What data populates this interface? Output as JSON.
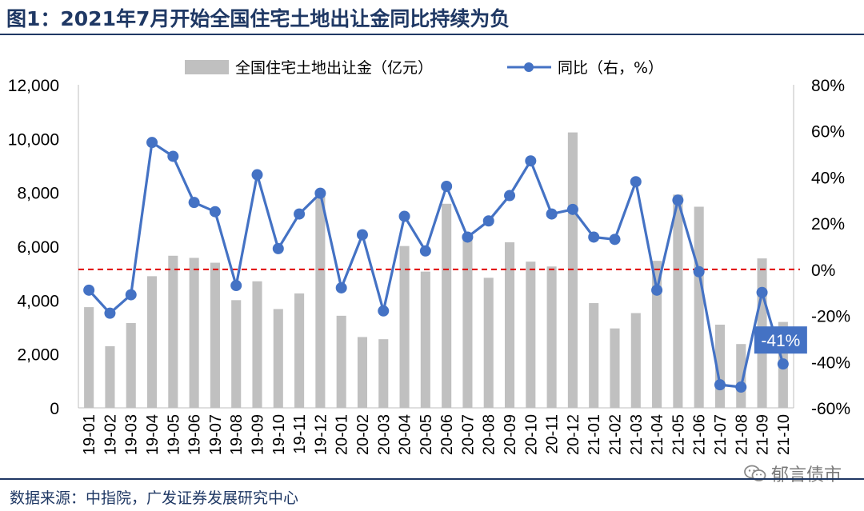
{
  "title": "图1：2021年7月开始全国住宅土地出让金同比持续为负",
  "source": "数据来源：中指院，广发证券发展研究中心",
  "watermark": "郁言债市",
  "colors": {
    "bar": "#c0c0c0",
    "line": "#4472c4",
    "zero_line": "#e00000",
    "title": "#1f3864"
  },
  "chart_data": {
    "type": "bar",
    "categories": [
      "19-01",
      "19-02",
      "19-03",
      "19-04",
      "19-05",
      "19-06",
      "19-07",
      "19-08",
      "19-09",
      "19-10",
      "19-11",
      "19-12",
      "20-01",
      "20-02",
      "20-03",
      "20-04",
      "20-05",
      "20-06",
      "20-07",
      "20-08",
      "20-09",
      "20-10",
      "20-11",
      "20-12",
      "21-01",
      "21-02",
      "21-03",
      "21-04",
      "21-05",
      "21-06",
      "21-07",
      "21-08",
      "21-09",
      "21-10"
    ],
    "series": [
      {
        "name": "全国住宅土地出让金（亿元）",
        "type": "bar",
        "axis": "left",
        "values": [
          3740,
          2290,
          3150,
          4890,
          5650,
          5570,
          5390,
          4000,
          4700,
          3670,
          4250,
          7950,
          3420,
          2630,
          2550,
          6010,
          5060,
          7580,
          6400,
          4830,
          6150,
          5430,
          5250,
          10230,
          3890,
          2950,
          3520,
          5460,
          7920,
          7470,
          3090,
          2370,
          5550,
          3190
        ]
      },
      {
        "name": "同比（右，%）",
        "type": "line",
        "axis": "right",
        "values": [
          -9,
          -19,
          -11,
          55,
          49,
          29,
          25,
          -7,
          41,
          9,
          24,
          33,
          -8,
          15,
          -18,
          23,
          8,
          36,
          14,
          21,
          32,
          47,
          24,
          26,
          14,
          13,
          38,
          -9,
          30,
          -1,
          -50,
          -51,
          -10,
          -41
        ]
      }
    ],
    "ylim_left": [
      0,
      12000
    ],
    "ylim_right": [
      -60,
      80
    ],
    "left_ticks": [
      "0",
      "2,000",
      "4,000",
      "6,000",
      "8,000",
      "10,000",
      "12,000"
    ],
    "right_ticks": [
      "-60%",
      "-40%",
      "-20%",
      "0%",
      "20%",
      "40%",
      "60%",
      "80%"
    ],
    "annotation": "-41%",
    "legend_position": "top"
  }
}
